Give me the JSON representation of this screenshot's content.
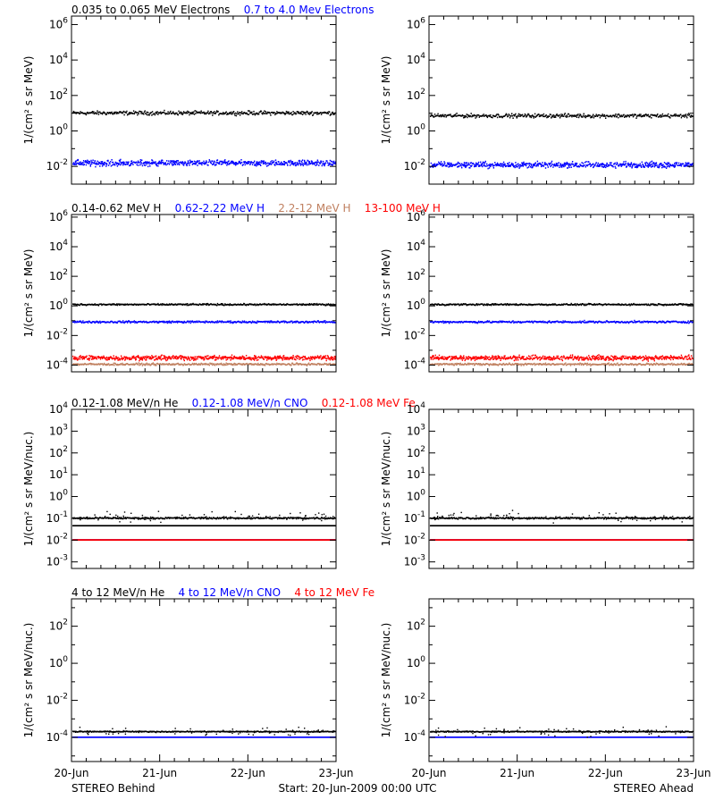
{
  "footer": {
    "left": "STEREO Behind",
    "center": "Start: 20-Jun-2009 00:00 UTC",
    "right": "STEREO Ahead"
  },
  "x_ticks": [
    "20-Jun",
    "21-Jun",
    "22-Jun",
    "23-Jun"
  ],
  "colors": {
    "black": "#000000",
    "blue": "#0000ff",
    "tan": "#c08060",
    "red": "#ff0000"
  },
  "chart_data": [
    {
      "type": "scatter",
      "title_series": [
        {
          "name": "0.035 to 0.065 MeV Electrons",
          "color": "#000000"
        },
        {
          "name": "0.7 to 4.0 Mev Electrons",
          "color": "#0000ff"
        }
      ],
      "ylabel": "1/(cm² s sr MeV)",
      "yscale": "log",
      "ylim": [
        0.001,
        3000000
      ],
      "ytick_exponents": [
        -2,
        0,
        2,
        4,
        6
      ],
      "xlim": [
        "2009-06-20",
        "2009-06-23"
      ],
      "panels": [
        {
          "spacecraft": "STEREO Behind",
          "series": [
            {
              "color": "#000000",
              "level": 10,
              "spread": 0.08
            },
            {
              "color": "#0000ff",
              "level": 0.015,
              "spread": 0.12
            }
          ]
        },
        {
          "spacecraft": "STEREO Ahead",
          "series": [
            {
              "color": "#000000",
              "level": 7,
              "spread": 0.08
            },
            {
              "color": "#0000ff",
              "level": 0.012,
              "spread": 0.12
            }
          ]
        }
      ]
    },
    {
      "type": "scatter",
      "title_series": [
        {
          "name": "0.14-0.62 MeV H",
          "color": "#000000"
        },
        {
          "name": "0.62-2.22 MeV H",
          "color": "#0000ff"
        },
        {
          "name": "2.2-12 MeV H",
          "color": "#c08060"
        },
        {
          "name": "13-100 MeV H",
          "color": "#ff0000"
        }
      ],
      "ylabel": "1/(cm² s sr MeV)",
      "yscale": "log",
      "ylim": [
        3.5e-05,
        1500000
      ],
      "ytick_exponents": [
        -4,
        -2,
        0,
        2,
        4,
        6
      ],
      "xlim": [
        "2009-06-20",
        "2009-06-23"
      ],
      "panels": [
        {
          "spacecraft": "STEREO Behind",
          "series": [
            {
              "color": "#000000",
              "level": 1.2,
              "spread": 0.04
            },
            {
              "color": "#0000ff",
              "level": 0.08,
              "spread": 0.05
            },
            {
              "color": "#ff0000",
              "level": 0.0003,
              "spread": 0.12
            },
            {
              "color": "#c08060",
              "level": 0.00011,
              "spread": 0.05
            }
          ]
        },
        {
          "spacecraft": "STEREO Ahead",
          "series": [
            {
              "color": "#000000",
              "level": 1.2,
              "spread": 0.04
            },
            {
              "color": "#0000ff",
              "level": 0.08,
              "spread": 0.05
            },
            {
              "color": "#ff0000",
              "level": 0.0003,
              "spread": 0.12
            },
            {
              "color": "#c08060",
              "level": 0.00011,
              "spread": 0.05
            }
          ]
        }
      ]
    },
    {
      "type": "scatter",
      "title_series": [
        {
          "name": "0.12-1.08 MeV/n He",
          "color": "#000000"
        },
        {
          "name": "0.12-1.08 MeV/n CNO",
          "color": "#0000ff"
        },
        {
          "name": "0.12-1.08 MeV Fe",
          "color": "#ff0000"
        }
      ],
      "ylabel": "1/(cm² s sr MeV/nuc.)",
      "yscale": "log",
      "ylim": [
        0.0005,
        10000
      ],
      "ytick_exponents": [
        -3,
        -2,
        -1,
        0,
        1,
        2,
        3,
        4
      ],
      "xlim": [
        "2009-06-20",
        "2009-06-23"
      ],
      "panels": [
        {
          "spacecraft": "STEREO Behind",
          "series": [
            {
              "color": "#000000",
              "level": 0.1,
              "spread": 0.03
            },
            {
              "color": "#000000",
              "level": 0.045,
              "spread": 0.0
            },
            {
              "color": "#0000ff",
              "level": 0.01,
              "spread": 0.0
            },
            {
              "color": "#ff0000",
              "level": 0.01,
              "spread": 0.0
            }
          ]
        },
        {
          "spacecraft": "STEREO Ahead",
          "series": [
            {
              "color": "#000000",
              "level": 0.1,
              "spread": 0.03
            },
            {
              "color": "#000000",
              "level": 0.045,
              "spread": 0.0
            },
            {
              "color": "#0000ff",
              "level": 0.01,
              "spread": 0.0
            },
            {
              "color": "#ff0000",
              "level": 0.01,
              "spread": 0.0
            }
          ]
        }
      ]
    },
    {
      "type": "scatter",
      "title_series": [
        {
          "name": "4 to 12 MeV/n He",
          "color": "#000000"
        },
        {
          "name": "4 to 12 MeV/n CNO",
          "color": "#0000ff"
        },
        {
          "name": "4 to 12 MeV Fe",
          "color": "#ff0000"
        }
      ],
      "ylabel": "1/(cm² s sr MeV/nuc.)",
      "yscale": "log",
      "ylim": [
        5e-06,
        3000
      ],
      "ytick_exponents": [
        -4,
        -2,
        0,
        2
      ],
      "xlim": [
        "2009-06-20",
        "2009-06-23"
      ],
      "panels": [
        {
          "spacecraft": "STEREO Behind",
          "series": [
            {
              "color": "#0000ff",
              "level": 0.0001,
              "spread": 0.0
            },
            {
              "color": "#000000",
              "level": 0.0002,
              "spread": 0.02
            }
          ]
        },
        {
          "spacecraft": "STEREO Ahead",
          "series": [
            {
              "color": "#0000ff",
              "level": 0.0001,
              "spread": 0.0
            },
            {
              "color": "#000000",
              "level": 0.0002,
              "spread": 0.02
            }
          ]
        }
      ]
    }
  ]
}
